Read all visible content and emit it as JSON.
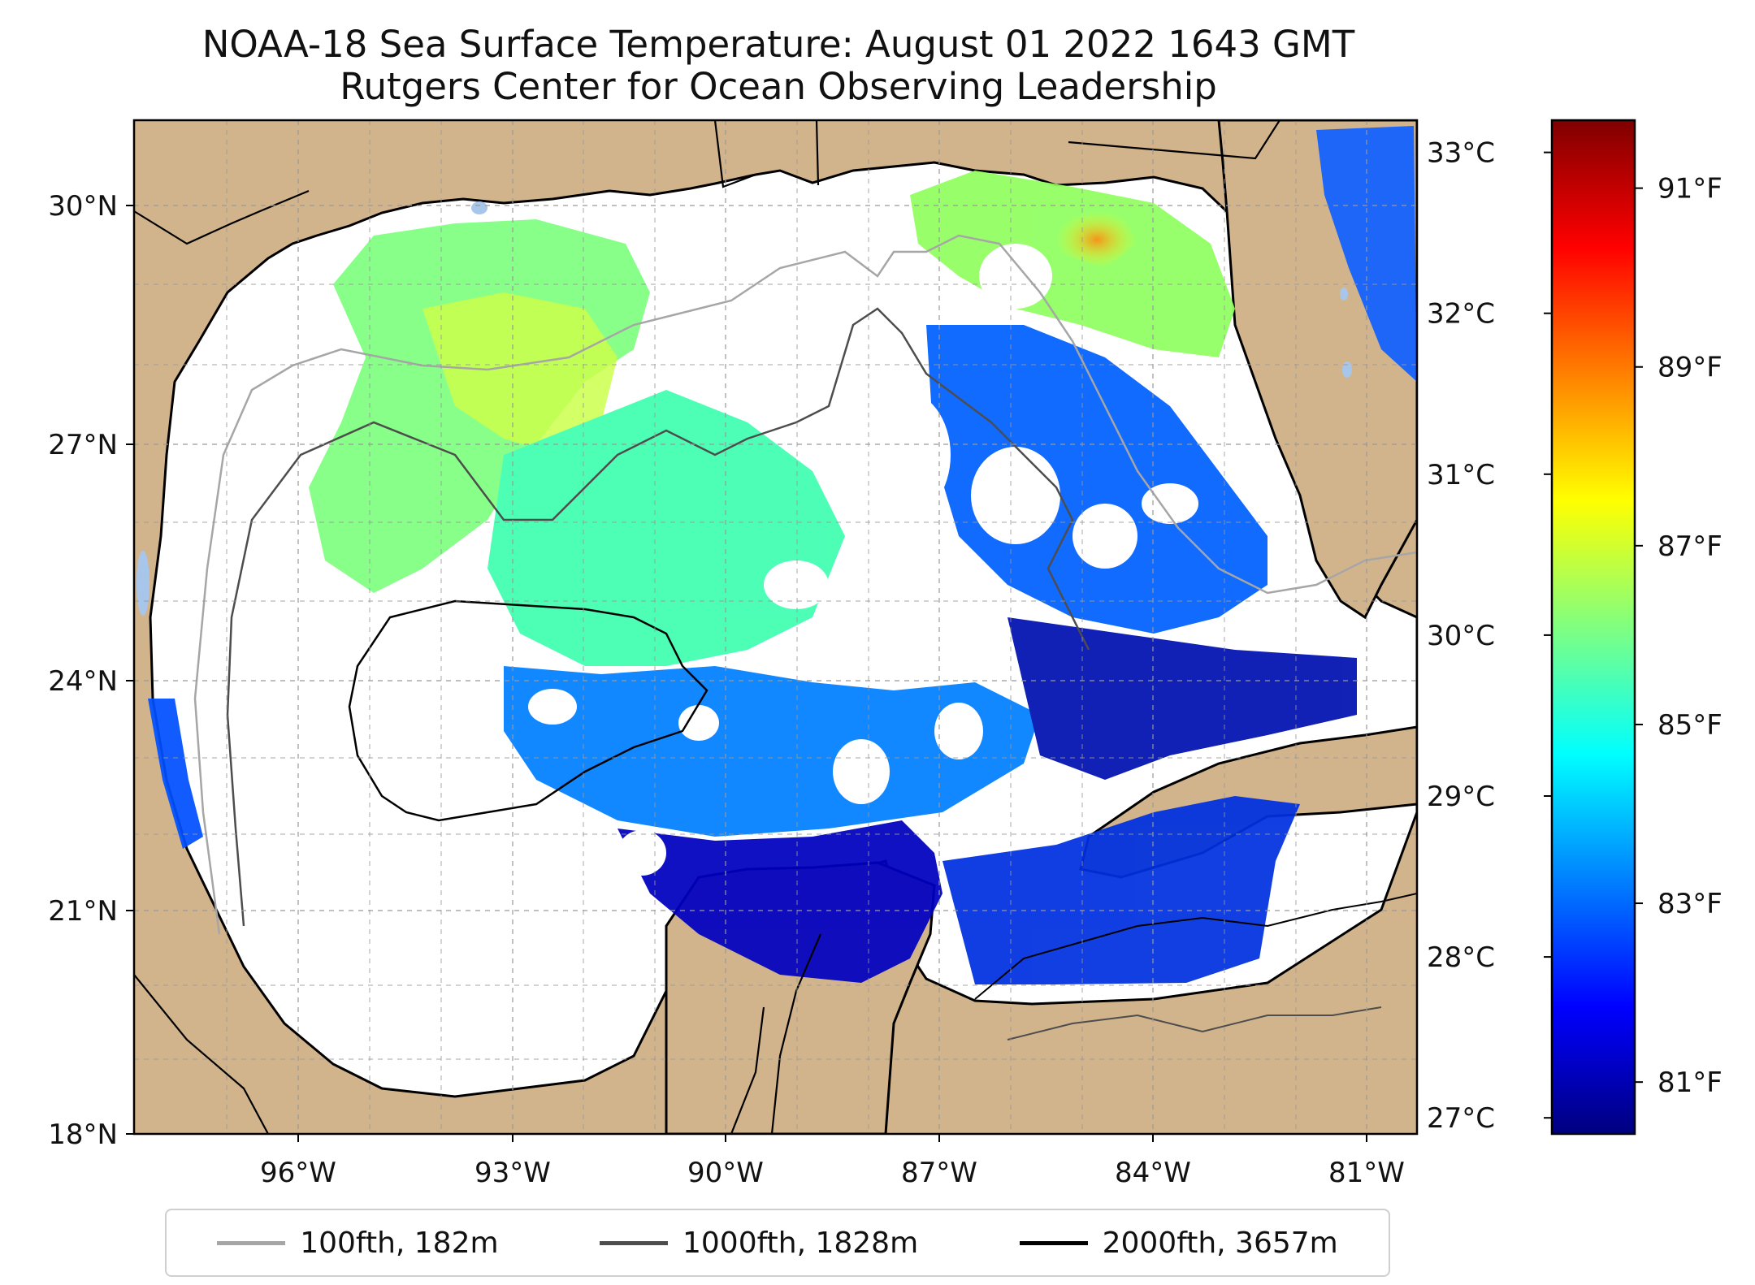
{
  "title": {
    "line1": "NOAA-18 Sea Surface Temperature: August 01 2022 1643 GMT",
    "line2": "Rutgers Center for Ocean Observing Leadership"
  },
  "map": {
    "lon_range": [
      -98,
      -80
    ],
    "lat_range": [
      18,
      31
    ],
    "lon_ticks": [
      "96°W",
      "93°W",
      "90°W",
      "87°W",
      "84°W",
      "81°W"
    ],
    "lat_ticks": [
      "18°N",
      "21°N",
      "24°N",
      "27°N",
      "30°N"
    ],
    "land_color": "#d2b48c",
    "water_color": "#a8c6ea"
  },
  "legend": [
    {
      "label": "100fth, 182m",
      "color": "#a6a6a6"
    },
    {
      "label": "1000fth, 1828m",
      "color": "#4d4d4d"
    },
    {
      "label": "2000fth, 3657m",
      "color": "#000000"
    }
  ],
  "colorbar": {
    "celsius_ticks": [
      "27°C",
      "28°C",
      "29°C",
      "30°C",
      "31°C",
      "32°C",
      "33°C"
    ],
    "fahrenheit_ticks": [
      "81°F",
      "83°F",
      "85°F",
      "87°F",
      "89°F",
      "91°F"
    ],
    "celsius_min": 26.9,
    "celsius_max": 33.2,
    "colormap": [
      "#00007f",
      "#0000ff",
      "#0080ff",
      "#00ffff",
      "#80ff80",
      "#ffff00",
      "#ff8000",
      "#ff0000",
      "#7f0000"
    ]
  }
}
